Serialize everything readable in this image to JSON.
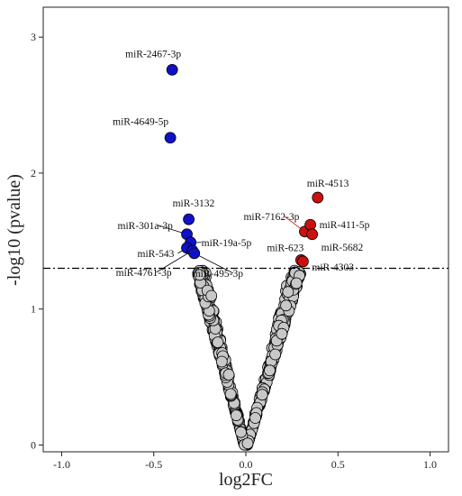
{
  "chart_data": {
    "type": "scatter",
    "xlabel": "log2FC",
    "ylabel": "-log10 (pvalue)",
    "xlim": [
      -1.1,
      1.1
    ],
    "ylim": [
      -0.05,
      3.22
    ],
    "x_ticks": [
      "-1.0",
      "-0.5",
      "0.0",
      "0.5",
      "1.0"
    ],
    "x_tick_values": [
      -1.0,
      -0.5,
      0.0,
      0.5,
      1.0
    ],
    "y_ticks": [
      "0",
      "1",
      "2",
      "3"
    ],
    "y_tick_values": [
      0,
      1,
      2,
      3
    ],
    "threshold": 1.3,
    "grid": false,
    "colors": {
      "down": "#1010c8",
      "up": "#cc1010",
      "ns": "#c8c8c8",
      "outline": "#000000"
    },
    "down_points": [
      {
        "label": "miR-2467-3p",
        "x": -0.4,
        "y": 2.76
      },
      {
        "label": "miR-4649-5p",
        "x": -0.41,
        "y": 2.26
      },
      {
        "label": "miR-3132",
        "x": -0.31,
        "y": 1.66
      },
      {
        "label": "miR-301a-3p",
        "x": -0.32,
        "y": 1.55
      },
      {
        "label": "miR-19a-5p",
        "x": -0.3,
        "y": 1.49
      },
      {
        "label": "miR-543",
        "x": -0.32,
        "y": 1.45
      },
      {
        "label": "miR-4761-3p",
        "x": -0.29,
        "y": 1.43
      },
      {
        "label": "miR-495-3p",
        "x": -0.28,
        "y": 1.41
      }
    ],
    "up_points": [
      {
        "label": "miR-4513",
        "x": 0.39,
        "y": 1.82
      },
      {
        "label": "miR-7162-3p",
        "x": 0.32,
        "y": 1.57
      },
      {
        "label": "miR-411-5p",
        "x": 0.35,
        "y": 1.62
      },
      {
        "label": "miR-5682",
        "x": 0.36,
        "y": 1.55
      },
      {
        "label": "miR-623",
        "x": 0.3,
        "y": 1.36
      },
      {
        "label": "miR-4303",
        "x": 0.31,
        "y": 1.35
      }
    ]
  }
}
